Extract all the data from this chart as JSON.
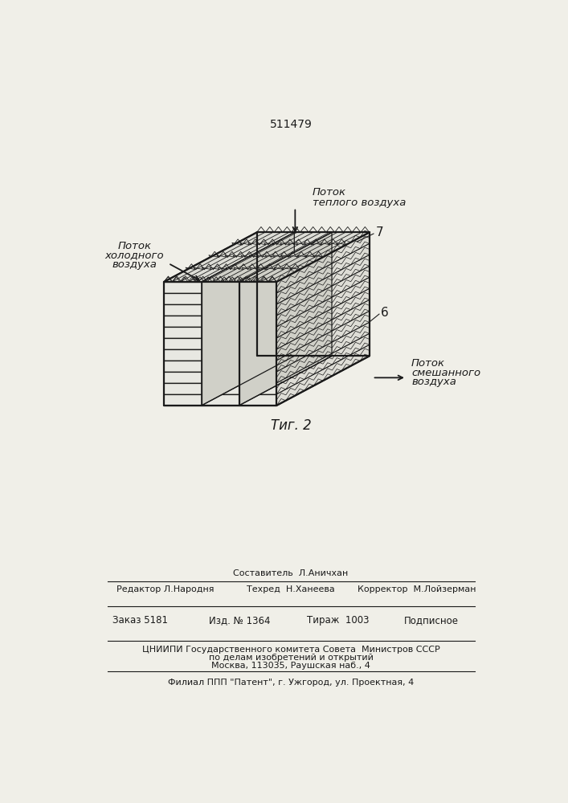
{
  "bg_color": "#f0efe8",
  "line_color": "#1a1a1a",
  "patent_number": "511479",
  "fig_label": "Τиг. 2",
  "label_top_flow_line1": "Поток",
  "label_top_flow_line2": "теплого воздуха",
  "label_left_flow_line1": "Поток",
  "label_left_flow_line2": "холодного",
  "label_left_flow_line3": "воздуха",
  "label_right_flow_line1": "Поток",
  "label_right_flow_line2": "смешанного",
  "label_right_flow_line3": "воздуха",
  "label_7": "7",
  "label_6": "6",
  "footer_sestavitel": "Составитель",
  "footer_sestavitel_name": "Л.Аничхан",
  "footer_redaktor": "Редактор",
  "footer_redaktor_name": "Л.Народня",
  "footer_tehred": "Техред",
  "footer_tehred_name": "Н.Ханеева",
  "footer_korrektor": "Корректор",
  "footer_korrektor_name": "М.Лойзерман",
  "footer_zakaz": "Заказ",
  "footer_zakaz_num": "5181",
  "footer_izd": "Изд. №",
  "footer_izd_num": "1364",
  "footer_tirazh": "Тираж",
  "footer_tirazh_num": "1003",
  "footer_podpisnoe": "Подписное",
  "footer_cniip1": "ЦНИИПИ Государственного комитета Совета  Министров СССР",
  "footer_cniip2": "по делам изобретений и открытий",
  "footer_moscow": "Москва, 113035, Раушская наб., 4",
  "footer_filial": "Филиал ППП \"Патент\", г. Ужгород, ул. Проектная, 4"
}
